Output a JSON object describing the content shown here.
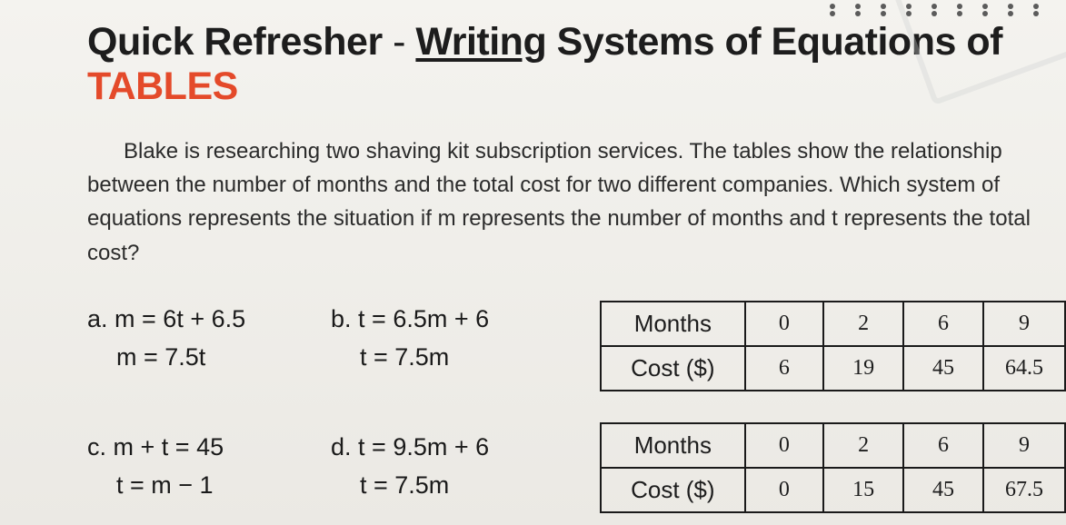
{
  "title": {
    "prefix": "Quick Refresher",
    "dash": " - ",
    "underlined": "Writing",
    "mid": " Systems of Equations of ",
    "highlight": "TABLES"
  },
  "prompt": "Blake is researching two shaving kit subscription services. The tables show the relationship between the number of months and the total cost for two different companies. Which system of equations represents the situation if m represents the number of months and t represents the total cost?",
  "options": {
    "a": {
      "label": "a.",
      "line1": "m = 6t + 6.5",
      "line2": "m = 7.5t"
    },
    "b": {
      "label": "b.",
      "line1": "t = 6.5m + 6",
      "line2": "t = 7.5m"
    },
    "c": {
      "label": "c.",
      "line1": "m + t = 45",
      "line2": "t = m − 1"
    },
    "d": {
      "label": "d.",
      "line1": "t = 9.5m + 6",
      "line2": "t = 7.5m"
    }
  },
  "tables": {
    "row_labels": {
      "months": "Months",
      "cost": "Cost ($)"
    },
    "table1": {
      "months": [
        "0",
        "2",
        "6",
        "9"
      ],
      "cost": [
        "6",
        "19",
        "45",
        "64.5"
      ]
    },
    "table2": {
      "months": [
        "0",
        "2",
        "6",
        "9"
      ],
      "cost": [
        "0",
        "15",
        "45",
        "67.5"
      ]
    }
  },
  "style": {
    "accent_color": "#e44a2a",
    "border_color": "#1a1a1a",
    "background_top": "#f4f3ef",
    "background_bottom": "#ebe9e4",
    "title_fontsize": 43,
    "prompt_fontsize": 24,
    "answer_fontsize": 27,
    "table_fontsize": 26,
    "label_col_width": 168,
    "val_col_width": 96
  }
}
